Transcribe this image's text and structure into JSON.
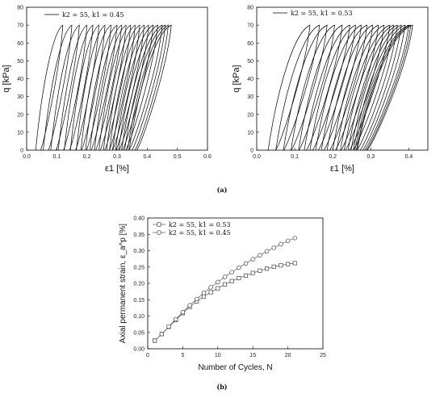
{
  "panel_labels": {
    "a": "(a)",
    "b": "(b)"
  },
  "chart_data": [
    {
      "type": "line",
      "ylabel": "q [kPa]",
      "xlabel": "ε1 [%]",
      "xlim": [
        0,
        0.6
      ],
      "ylim": [
        0,
        80
      ],
      "xticks": [
        "0.0",
        "0.1",
        "0.2",
        "0.3",
        "0.4",
        "0.5",
        "0.6"
      ],
      "yticks": [
        "0",
        "10",
        "20",
        "30",
        "40",
        "50",
        "60",
        "70",
        "80"
      ],
      "legend": "k2 = 55, k1 = 0.45",
      "peak_q": 70,
      "loops": [
        {
          "start": 0.03,
          "peak": 0.12
        },
        {
          "start": 0.055,
          "peak": 0.15
        },
        {
          "start": 0.08,
          "peak": 0.175
        },
        {
          "start": 0.105,
          "peak": 0.2
        },
        {
          "start": 0.125,
          "peak": 0.22
        },
        {
          "start": 0.145,
          "peak": 0.24
        },
        {
          "start": 0.165,
          "peak": 0.26
        },
        {
          "start": 0.18,
          "peak": 0.28
        },
        {
          "start": 0.195,
          "peak": 0.3
        },
        {
          "start": 0.21,
          "peak": 0.315
        },
        {
          "start": 0.225,
          "peak": 0.33
        },
        {
          "start": 0.24,
          "peak": 0.345
        },
        {
          "start": 0.255,
          "peak": 0.36
        },
        {
          "start": 0.265,
          "peak": 0.375
        },
        {
          "start": 0.275,
          "peak": 0.39
        },
        {
          "start": 0.285,
          "peak": 0.405
        },
        {
          "start": 0.295,
          "peak": 0.42
        },
        {
          "start": 0.305,
          "peak": 0.435
        },
        {
          "start": 0.315,
          "peak": 0.45
        },
        {
          "start": 0.325,
          "peak": 0.46
        },
        {
          "start": 0.335,
          "peak": 0.47
        },
        {
          "start": 0.34,
          "peak": 0.48
        }
      ]
    },
    {
      "type": "line",
      "ylabel": "q [kPa]",
      "xlabel": "ε1 [%]",
      "xlim": [
        0,
        0.45
      ],
      "ylim": [
        0,
        80
      ],
      "xticks": [
        "0.0",
        "0.1",
        "0.2",
        "0.3",
        "0.4"
      ],
      "yticks": [
        "0",
        "10",
        "20",
        "30",
        "40",
        "50",
        "60",
        "70",
        "80"
      ],
      "legend": "k2 = 55, k1 = 0.53",
      "peak_q": 70,
      "loops": [
        {
          "start": 0.03,
          "peak": 0.14
        },
        {
          "start": 0.05,
          "peak": 0.165
        },
        {
          "start": 0.07,
          "peak": 0.185
        },
        {
          "start": 0.09,
          "peak": 0.205
        },
        {
          "start": 0.11,
          "peak": 0.225
        },
        {
          "start": 0.125,
          "peak": 0.245
        },
        {
          "start": 0.14,
          "peak": 0.26
        },
        {
          "start": 0.155,
          "peak": 0.275
        },
        {
          "start": 0.17,
          "peak": 0.29
        },
        {
          "start": 0.185,
          "peak": 0.305
        },
        {
          "start": 0.2,
          "peak": 0.32
        },
        {
          "start": 0.21,
          "peak": 0.335
        },
        {
          "start": 0.22,
          "peak": 0.35
        },
        {
          "start": 0.23,
          "peak": 0.36
        },
        {
          "start": 0.24,
          "peak": 0.37
        },
        {
          "start": 0.248,
          "peak": 0.38
        },
        {
          "start": 0.254,
          "peak": 0.39
        },
        {
          "start": 0.258,
          "peak": 0.4
        },
        {
          "start": 0.262,
          "peak": 0.405
        },
        {
          "start": 0.264,
          "peak": 0.41
        }
      ]
    },
    {
      "type": "line",
      "xlabel": "Number of Cycles, N",
      "ylabel": "Axial permanent strain, ε_a^p [%]",
      "xlim": [
        0,
        25
      ],
      "ylim": [
        0,
        0.4
      ],
      "xticks": [
        "0",
        "5",
        "10",
        "15",
        "20",
        "25"
      ],
      "yticks": [
        "0.00",
        "0.05",
        "0.10",
        "0.15",
        "0.20",
        "0.25",
        "0.30",
        "0.35",
        "0.40"
      ],
      "x": [
        1,
        2,
        3,
        4,
        5,
        6,
        7,
        8,
        9,
        10,
        11,
        12,
        13,
        14,
        15,
        16,
        17,
        18,
        19,
        20,
        21
      ],
      "series": [
        {
          "name": "k2 = 55, k1 = 0.53",
          "marker": "square",
          "values": [
            0.025,
            0.045,
            0.067,
            0.088,
            0.109,
            0.128,
            0.145,
            0.16,
            0.173,
            0.185,
            0.197,
            0.207,
            0.216,
            0.224,
            0.232,
            0.239,
            0.245,
            0.251,
            0.255,
            0.259,
            0.262
          ]
        },
        {
          "name": "k2 = 55, k1 = 0.45",
          "marker": "circle",
          "values": [
            0.025,
            0.045,
            0.068,
            0.09,
            0.112,
            0.133,
            0.152,
            0.171,
            0.188,
            0.204,
            0.22,
            0.234,
            0.248,
            0.261,
            0.274,
            0.286,
            0.298,
            0.309,
            0.32,
            0.33,
            0.339
          ]
        }
      ],
      "legend_position": "top-left"
    }
  ]
}
